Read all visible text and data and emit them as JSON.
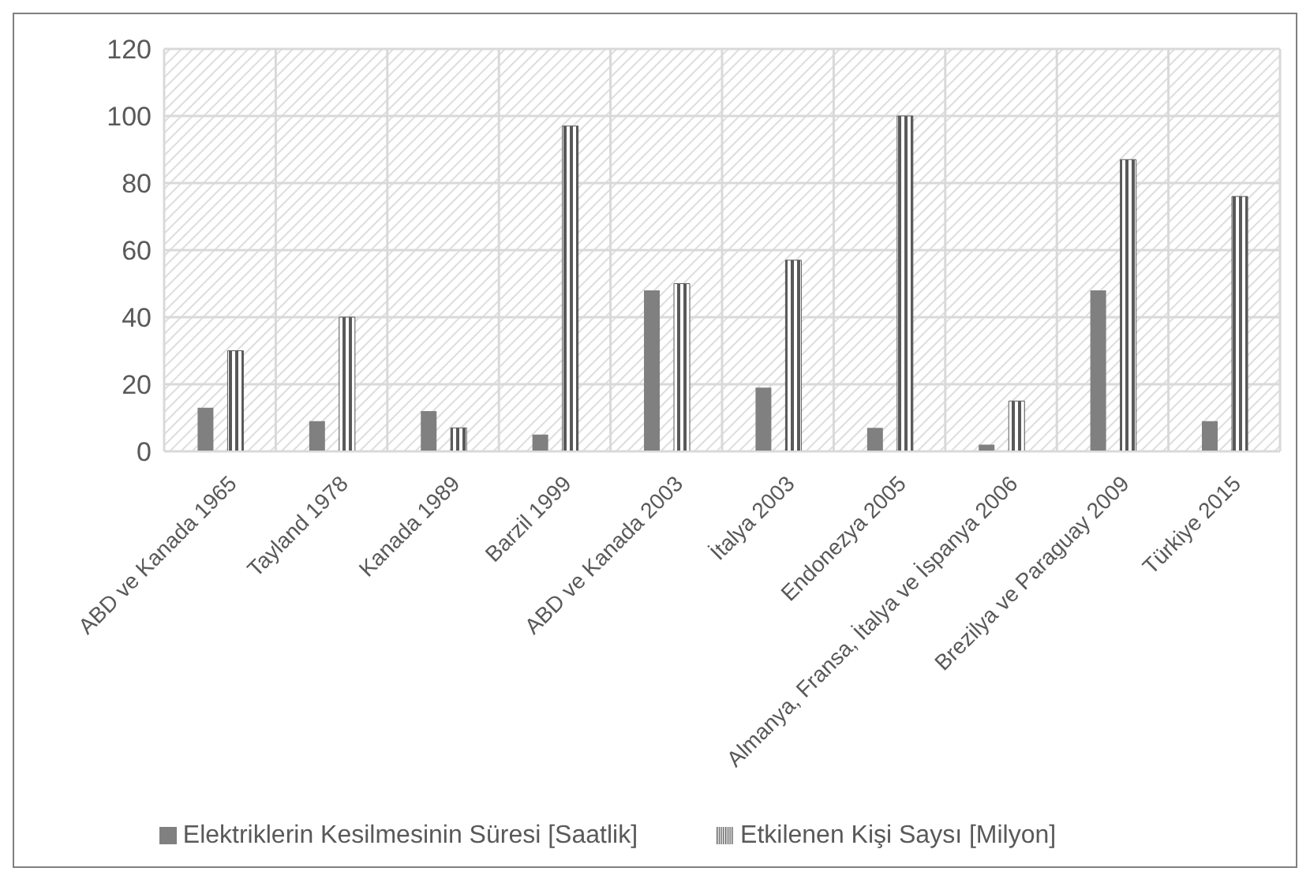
{
  "chart_data": {
    "type": "bar",
    "categories": [
      "ABD ve Kanada 1965",
      "Tayland 1978",
      "Kanada 1989",
      "Barzil 1999",
      "ABD ve Kanada 2003",
      "İtalya 2003",
      "Endonezya 2005",
      "Almanya, Fransa, İtalya ve İspanya 2006",
      "Brezilya ve Paraguay 2009",
      "Türkiye 2015"
    ],
    "series": [
      {
        "name": "Elektriklerin Kesilmesinin Süresi [Saatlik]",
        "color": "#808080",
        "values": [
          13,
          9,
          12,
          5,
          48,
          19,
          7,
          2,
          48,
          9
        ]
      },
      {
        "name": "Etkilenen Kişi Saysı [Milyon]",
        "color": "#595959",
        "values": [
          30,
          40,
          7,
          97,
          50,
          57,
          100,
          15,
          87,
          76
        ]
      }
    ],
    "ylim": [
      0,
      120
    ],
    "yticks": [
      0,
      20,
      40,
      60,
      80,
      100,
      120
    ],
    "grid": true,
    "legend": "bottom"
  }
}
